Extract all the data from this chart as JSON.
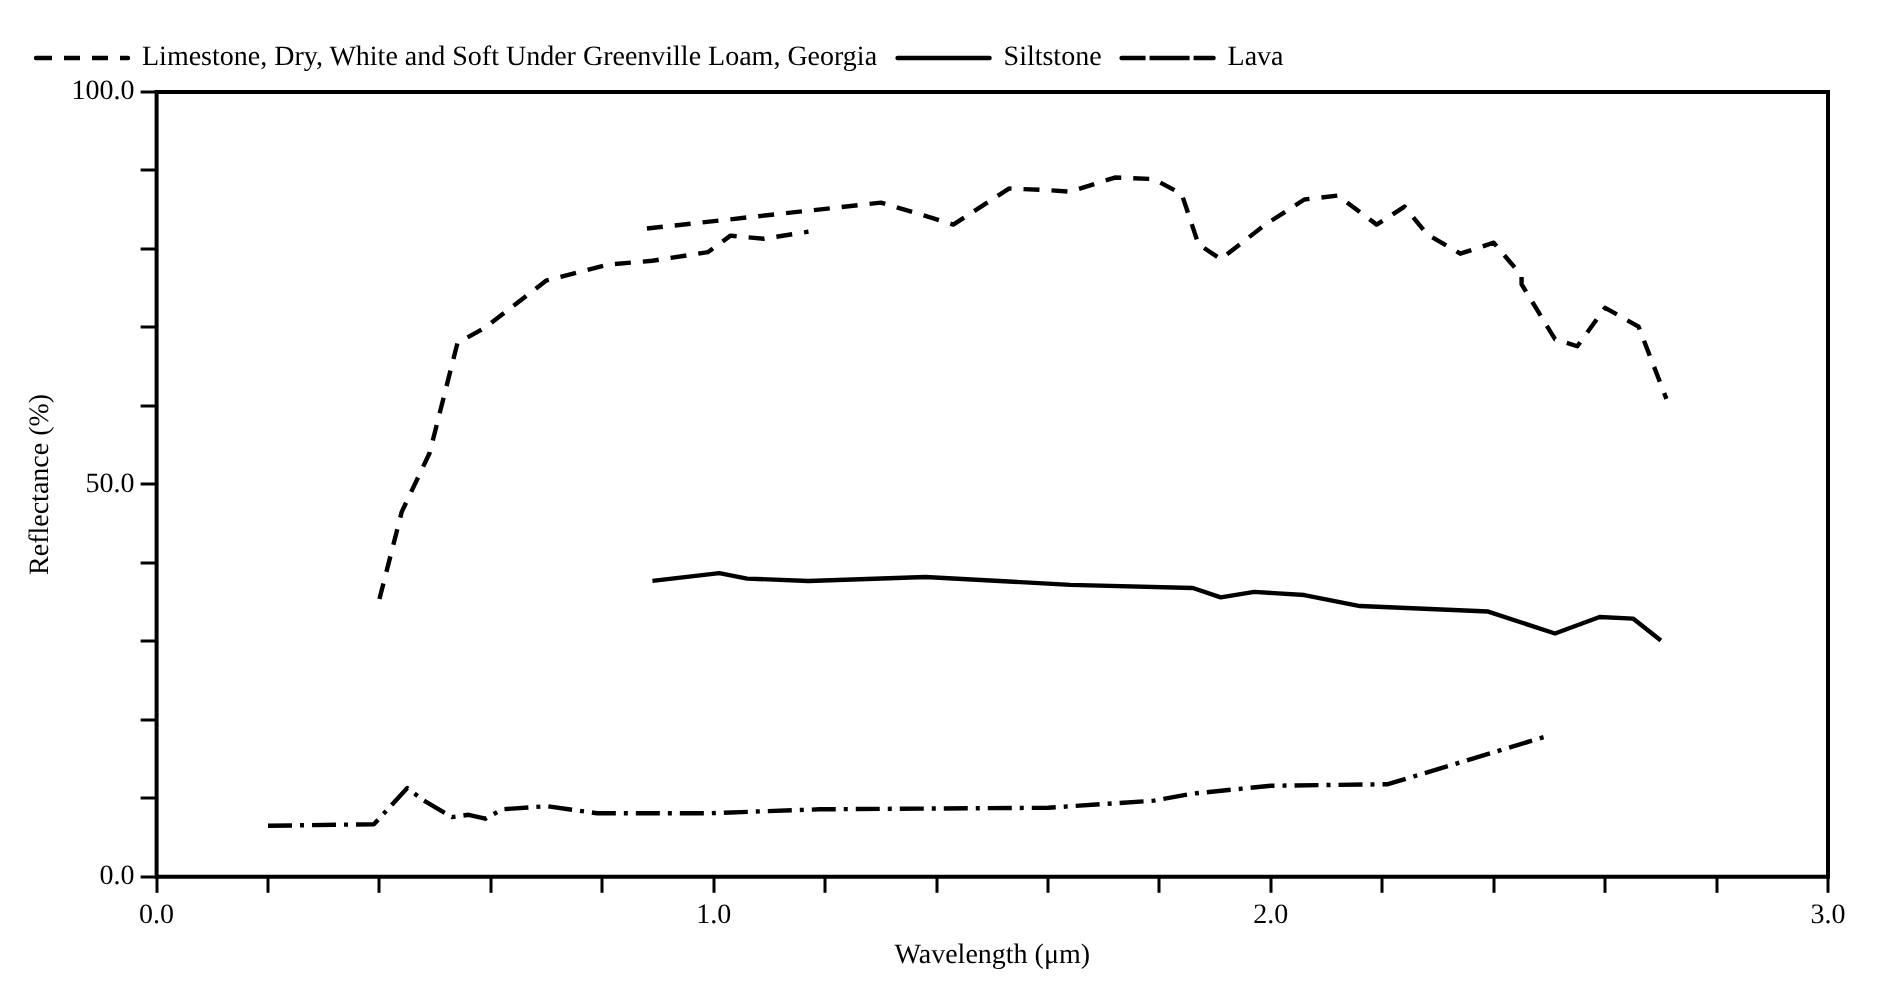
{
  "chart_data": {
    "type": "line",
    "xlabel": "Wavelength (μm)",
    "ylabel": "Reflectance (%)",
    "xlim": [
      0,
      3
    ],
    "ylim": [
      0,
      100
    ],
    "xticks": [
      {
        "value": 0,
        "label": "0.0"
      },
      {
        "value": 0.2,
        "label": null
      },
      {
        "value": 0.4,
        "label": null
      },
      {
        "value": 0.6,
        "label": null
      },
      {
        "value": 0.8,
        "label": null
      },
      {
        "value": 1,
        "label": "1.0"
      },
      {
        "value": 1.2,
        "label": null
      },
      {
        "value": 1.4,
        "label": null
      },
      {
        "value": 1.6,
        "label": null
      },
      {
        "value": 1.8,
        "label": null
      },
      {
        "value": 2,
        "label": "2.0"
      },
      {
        "value": 2.2,
        "label": null
      },
      {
        "value": 2.4,
        "label": null
      },
      {
        "value": 2.6,
        "label": null
      },
      {
        "value": 2.8,
        "label": null
      },
      {
        "value": 3,
        "label": "3.0"
      }
    ],
    "yticks": [
      {
        "value": 0,
        "label": "0.0"
      },
      {
        "value": 10,
        "label": null
      },
      {
        "value": 20,
        "label": null
      },
      {
        "value": 30,
        "label": null
      },
      {
        "value": 40,
        "label": null
      },
      {
        "value": 50,
        "label": "50.0"
      },
      {
        "value": 60,
        "label": null
      },
      {
        "value": 70,
        "label": null
      },
      {
        "value": 80,
        "label": null
      },
      {
        "value": 90,
        "label": null
      },
      {
        "value": 100,
        "label": "100.0"
      }
    ],
    "grid": false,
    "legend": "top left",
    "marker": "none",
    "series": [
      {
        "name": "Limestone, Dry, White and Soft Under Greenville Loam, Georgia",
        "color": "#000000",
        "line_style": "dashed",
        "x": [
          0.4,
          0.44,
          0.49,
          0.54,
          0.59,
          0.7,
          0.81,
          0.89,
          0.99,
          1.03,
          1.09,
          1.17,
          null,
          0.88,
          1.3,
          1.39,
          1.43,
          1.53,
          1.6,
          1.64,
          1.72,
          1.79,
          1.84,
          1.87,
          1.91,
          1.99,
          2.06,
          2.12,
          2.19,
          2.24,
          2.28,
          2.34,
          2.4,
          2.45,
          2.45,
          2.51,
          2.55,
          2.6,
          2.66,
          2.71
        ],
        "values": [
          35.4,
          46.5,
          54,
          68,
          70,
          76,
          78,
          78.5,
          79.6,
          81.7,
          81.3,
          82.2,
          null,
          82.6,
          85.9,
          84.0,
          83.1,
          87.7,
          87.5,
          87.3,
          89.1,
          88.9,
          87,
          80.6,
          78.7,
          83.1,
          86.3,
          86.8,
          83.1,
          85.4,
          81.9,
          79.4,
          80.8,
          76.6,
          75.5,
          68.5,
          67.6,
          72.5,
          70.1,
          60.9
        ]
      },
      {
        "name": "Siltstone",
        "color": "#000000",
        "line_style": "solid",
        "x": [
          0.89,
          1.01,
          1.06,
          1.17,
          1.38,
          1.64,
          1.86,
          1.91,
          1.97,
          2.06,
          2.16,
          2.39,
          2.51,
          2.59,
          2.65,
          2.7
        ],
        "values": [
          37.7,
          38.7,
          38.0,
          37.7,
          38.2,
          37.2,
          36.8,
          35.6,
          36.3,
          35.9,
          34.5,
          33.8,
          31.0,
          33.1,
          32.9,
          30.1
        ]
      },
      {
        "name": "Lava",
        "color": "#000000",
        "line_style": "dashdot",
        "x": [
          0.2,
          0.39,
          0.45,
          0.48,
          0.53,
          0.56,
          0.59,
          0.62,
          0.7,
          0.79,
          0.99,
          1.19,
          1.6,
          1.79,
          1.86,
          2.0,
          2.21,
          2.49
        ],
        "values": [
          6.5,
          6.7,
          11.3,
          9.7,
          7.6,
          7.9,
          7.4,
          8.6,
          9.0,
          8.1,
          8.1,
          8.6,
          8.8,
          9.7,
          10.6,
          11.6,
          11.8,
          17.8
        ]
      }
    ]
  }
}
